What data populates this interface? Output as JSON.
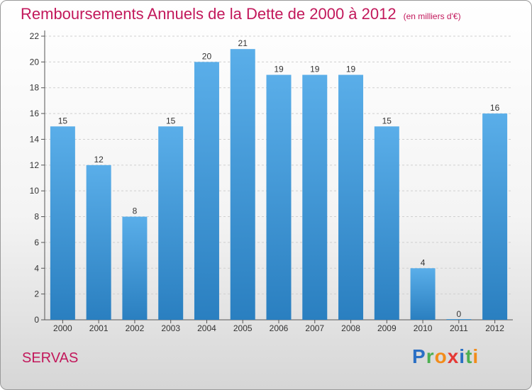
{
  "header": {
    "title": "Remboursements Annuels de la Dette de 2000 à 2012",
    "unit": "(en milliers d'€)"
  },
  "commune": "SERVAS",
  "logo": {
    "letters": [
      "P",
      "r",
      "o",
      "x",
      "i",
      "t",
      "i"
    ]
  },
  "colors": {
    "bar_top": "#5aaee9",
    "bar_bottom": "#2a7fc0",
    "title": "#c2185b",
    "logo": [
      "#2a6fc4",
      "#4caf50",
      "#f28c1a",
      "#e53935",
      "#2a6fc4",
      "#4caf50",
      "#f28c1a"
    ]
  },
  "chart_data": {
    "type": "bar",
    "categories": [
      "2000",
      "2001",
      "2002",
      "2003",
      "2004",
      "2005",
      "2006",
      "2007",
      "2008",
      "2009",
      "2010",
      "2011",
      "2012"
    ],
    "values": [
      15,
      12,
      8,
      15,
      20,
      21,
      19,
      19,
      19,
      15,
      4,
      0,
      16
    ],
    "data_labels": [
      "15",
      "12",
      "8",
      "15",
      "20",
      "21",
      "19",
      "19",
      "19",
      "15",
      "4",
      "0",
      "16"
    ],
    "ylim": [
      0,
      22
    ],
    "yticks": [
      0,
      2,
      4,
      6,
      8,
      10,
      12,
      14,
      16,
      18,
      20,
      22
    ],
    "ytick_labels": [
      "0",
      "2",
      "4",
      "6",
      "8",
      "10",
      "12",
      "14",
      "16",
      "18",
      "20",
      "22"
    ],
    "grid": true
  }
}
